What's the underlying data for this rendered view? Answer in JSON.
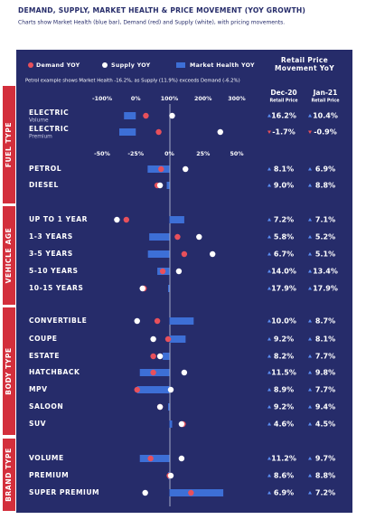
{
  "chart_data": {
    "type": "dumbbell",
    "title": "DEMAND, SUPPLY, MARKET HEALTH & PRICE MOVEMENT (YOY GROWTH)",
    "subtitle": "Charts show Market Health (blue bar), Demand (red) and Supply (white), with pricing movements.",
    "annotation": "Petrol example shows Market Health -16.2%, as Supply (11.9%) exceeds Demand (-6.2%)",
    "sections": [
      "FUEL TYPE",
      "VEHICLE AGE",
      "BODY TYPE",
      "BRAND TYPE"
    ],
    "categories": [
      "ELECTRIC",
      "ELECTRIC",
      "PETROL",
      "DIESEL",
      "UP TO 1 YEAR",
      "1-3 YEARS",
      "3-5 YEARS",
      "5-10 YEARS",
      "10-15 YEARS",
      "CONVERTIBLE",
      "COUPE",
      "ESTATE",
      "HATCHBACK",
      "MPV",
      "SALOON",
      "SUV",
      "VOLUME",
      "PREMIUM",
      "SUPER PREMIUM"
    ],
    "sublabels": [
      "Volume",
      "Premium"
    ],
    "series": [
      {
        "name": "Demand YOY",
        "color": "#e8505b",
        "values": [
          30,
          68,
          -6.2,
          -9,
          -32,
          6,
          11,
          -5,
          -19,
          -9,
          -1,
          -12,
          -12,
          -24,
          -7,
          10,
          -14,
          0,
          16
        ]
      },
      {
        "name": "Supply YOY",
        "color": "#ffffff",
        "values": [
          108,
          251,
          11.9,
          -7,
          -39,
          22,
          32,
          7,
          -20,
          -24,
          -12,
          -7,
          11,
          1,
          -7,
          9,
          9,
          1,
          -18
        ]
      },
      {
        "name": "Market Health YOY",
        "color": "#3d6fd6",
        "values": [
          -35,
          -49,
          -16.2,
          -2,
          11,
          -15,
          -16,
          -9,
          -1,
          18,
          12,
          -5,
          -22,
          -24,
          -1,
          2,
          -22,
          -1,
          40
        ]
      }
    ],
    "xlim": [
      -50,
      50
    ],
    "xticks": [
      {
        "value": -50,
        "label": "-50%"
      },
      {
        "value": -25,
        "label": "-25%"
      },
      {
        "value": 0,
        "label": "0%"
      },
      {
        "value": 25,
        "label": "25%"
      },
      {
        "value": 50,
        "label": "50%"
      }
    ],
    "x2lim": [
      -100,
      300
    ],
    "x2ticks": [
      {
        "value": -100,
        "label": "-100%"
      },
      {
        "value": 0,
        "label": "0%"
      },
      {
        "value": 100,
        "label": "100%"
      },
      {
        "value": 200,
        "label": "200%"
      },
      {
        "value": 300,
        "label": "300%"
      }
    ]
  },
  "retail_price": {
    "title": "Retail Price Movement YoY",
    "columns": [
      {
        "name": "Dec-20",
        "subtitle": "Retail Price",
        "values": [
          16.2,
          -1.7,
          8.1,
          9.0,
          7.2,
          5.8,
          6.7,
          14.0,
          17.9,
          10.0,
          9.2,
          8.2,
          11.5,
          8.9,
          9.2,
          4.6,
          11.2,
          8.6,
          6.9
        ],
        "value_labels": [
          "16.2%",
          "-1.7%",
          "8.1%",
          "9.0%",
          "7.2%",
          "5.8%",
          "6.7%",
          "14.0%",
          "17.9%",
          "10.0%",
          "9.2%",
          "8.2%",
          "11.5%",
          "8.9%",
          "9.2%",
          "4.6%",
          "11.2%",
          "8.6%",
          "6.9%"
        ]
      },
      {
        "name": "Jan-21",
        "subtitle": "Retail Price",
        "values": [
          10.4,
          -0.9,
          6.9,
          8.8,
          7.1,
          5.2,
          5.1,
          13.4,
          17.9,
          8.7,
          8.1,
          7.7,
          9.8,
          7.7,
          9.4,
          4.5,
          9.7,
          8.8,
          7.2
        ],
        "value_labels": [
          "10.4%",
          "-0.9%",
          "6.9%",
          "8.8%",
          "7.1%",
          "5.2%",
          "5.1%",
          "13.4%",
          "17.9%",
          "8.7%",
          "8.1%",
          "7.7%",
          "9.8%",
          "7.7%",
          "9.4%",
          "4.5%",
          "9.7%",
          "8.8%",
          "7.2%"
        ]
      }
    ]
  }
}
